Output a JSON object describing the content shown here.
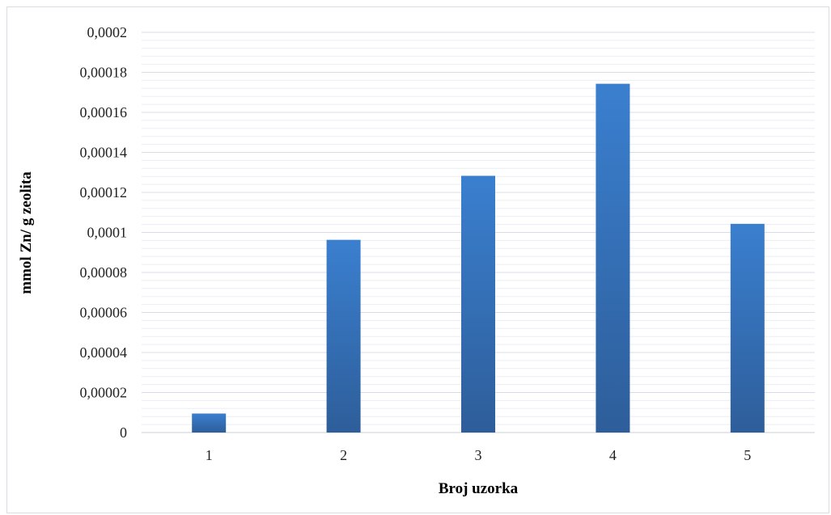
{
  "chart_data": {
    "type": "bar",
    "title": "",
    "xlabel": "Broj uzorka",
    "ylabel": "mmol Zn/ g zeolita",
    "categories": [
      "1",
      "2",
      "3",
      "4",
      "5"
    ],
    "values": [
      9.5e-06,
      9.63e-05,
      0.0001283,
      0.0001743,
      0.0001043
    ],
    "ylim": [
      0,
      0.0002
    ],
    "yticks": [
      0,
      2e-05,
      4e-05,
      6e-05,
      8e-05,
      0.0001,
      0.00012,
      0.00014,
      0.00016,
      0.00018,
      0.0002
    ],
    "ytick_labels": [
      "0",
      "0,00002",
      "0,00004",
      "0,00006",
      "0,00008",
      "0,0001",
      "0,00012",
      "0,00014",
      "0,00016",
      "0,00018",
      "0,0002"
    ],
    "grid": true,
    "minor_grid": true,
    "legend": "none",
    "bar_color_top": "#3a7fcf",
    "bar_color_bottom": "#2e5e9a",
    "gridline_color": "#d7dde6",
    "minor_gridline_color": "#eaeef3"
  }
}
